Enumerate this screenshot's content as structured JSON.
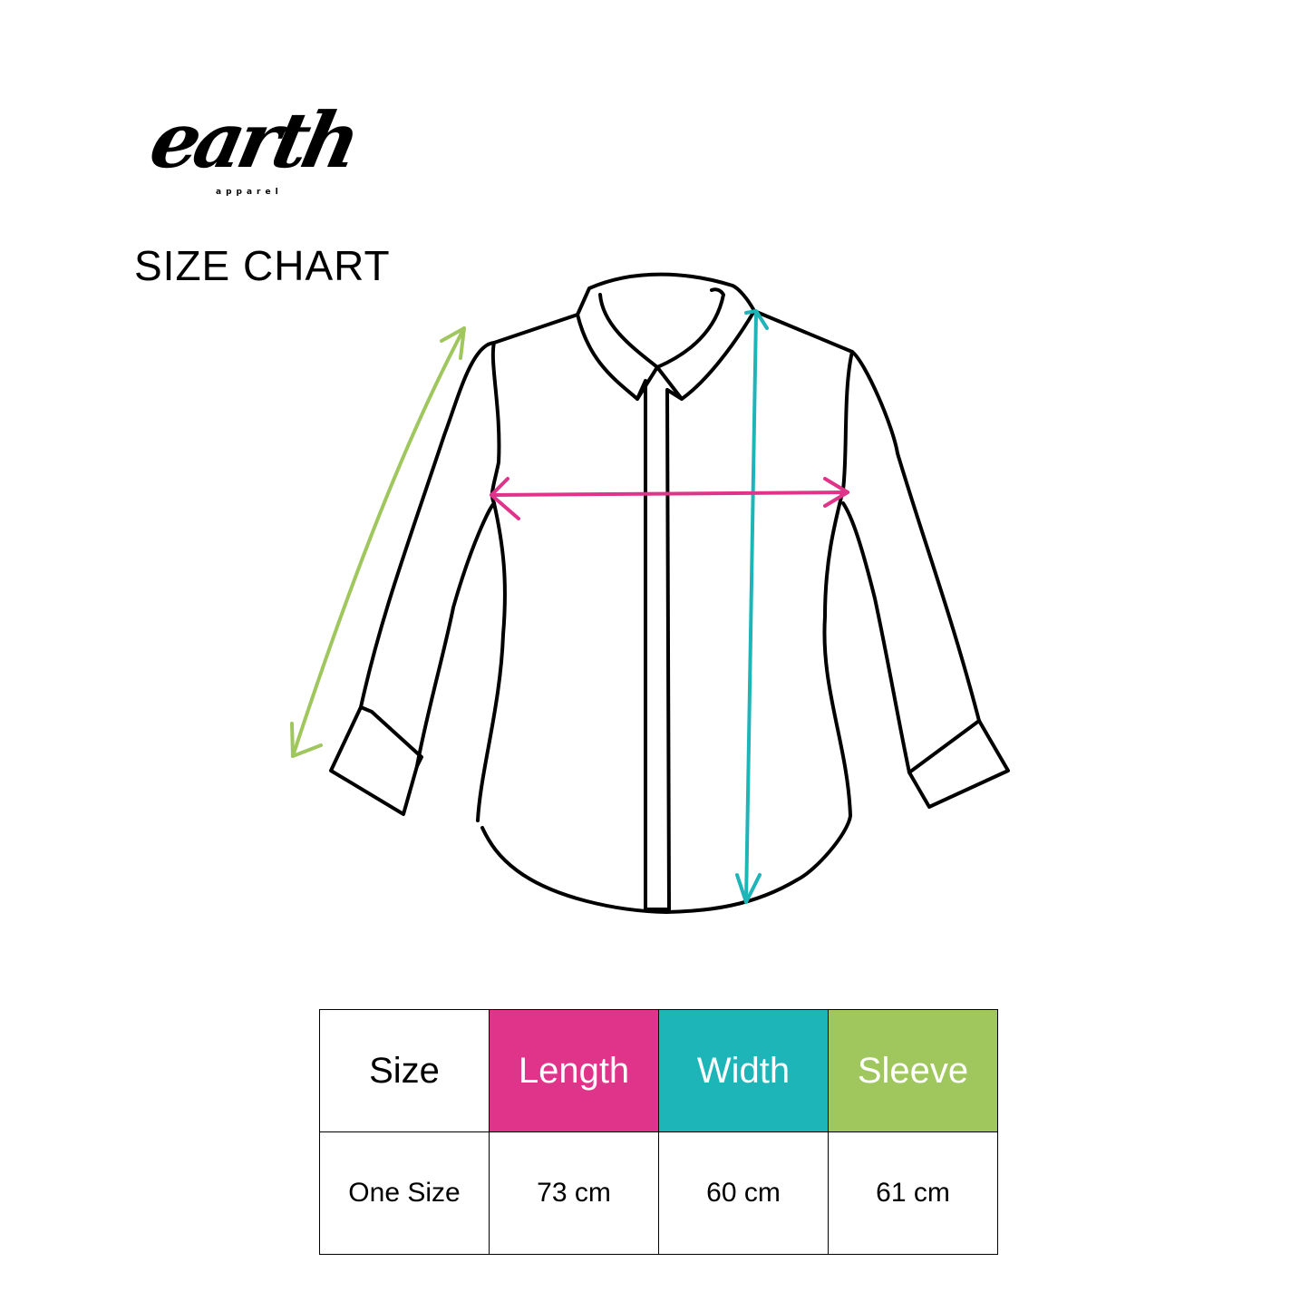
{
  "logo": {
    "word": "earth",
    "sub": "apparel"
  },
  "title": "SIZE CHART",
  "colors": {
    "length": "#e0338a",
    "width": "#1db5b8",
    "sleeve": "#9fc75e"
  },
  "table": {
    "headers": [
      "Size",
      "Length",
      "Width",
      "Sleeve"
    ],
    "rows": [
      [
        "One Size",
        "73 cm",
        "60 cm",
        "61 cm"
      ]
    ]
  }
}
